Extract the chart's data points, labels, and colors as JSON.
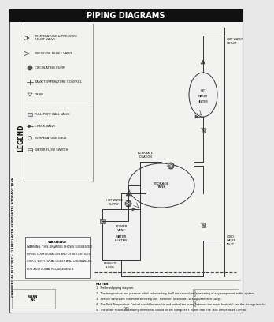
{
  "title": "PIPING DIAGRAMS",
  "title_bg": "#111111",
  "title_color": "#ffffff",
  "bg_color": "#e8e8e8",
  "page_bg": "#f2f2f0",
  "page_number": "38",
  "legend_title": "LEGEND",
  "diagram_title": "COMMERCIAL ELECTRIC - (1 UNIT) WITH HORIZONTAL STORAGE TANK",
  "warning_lines": [
    "WARNING: THIS DRAWING SHOWS SUGGESTED",
    "PIPING CONFIGURATION AND OTHER DEVICES;",
    "CHECK WITH LOCAL CODES AND ORDINANCES",
    "FOR ADDITIONAL REQUIREMENTS."
  ],
  "notes_header": "NOTES:",
  "notes": [
    "1.  Preferred piping diagram.",
    "2.  The temperature and pressure relief valve setting shall not exceed pressure rating of any component in the system.",
    "3.  Service valves are shown for servicing unit. However, local codes shall govern their usage.",
    "4.  The Tank Temperature Control should be wired to and control the pump between the water heater(s) and the storage tank(s).",
    "5.  The water heater's operating thermostat should be set 5 degrees F higher than the Tank Temperature Control."
  ],
  "border_color": "#555555",
  "line_color": "#333333",
  "text_color": "#111111"
}
